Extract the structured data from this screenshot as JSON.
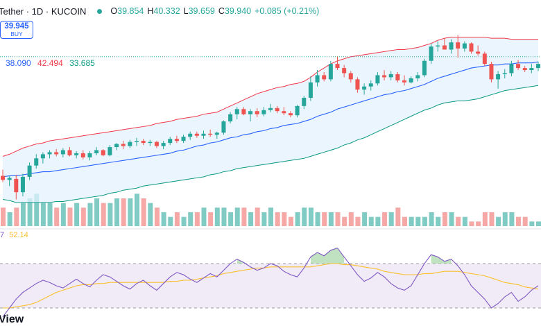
{
  "header": {
    "symbol": "Tether · 1D · KUCOIN",
    "ohlc": [
      {
        "k": "O",
        "v": "39.854"
      },
      {
        "k": "H",
        "v": "40.332"
      },
      {
        "k": "L",
        "v": "39.659"
      },
      {
        "k": "C",
        "v": "39.940"
      },
      {
        "k": "",
        "v": "+0.085 (+0.21%)"
      }
    ]
  },
  "buy_button": {
    "price": "39.945",
    "label": "BUY"
  },
  "bollinger_legend": {
    "basis": "38.090",
    "upper": "42.494",
    "lower": "33.685"
  },
  "rsi_legend": {
    "prefix": "7",
    "value": "52.14"
  },
  "watermark": "View",
  "colors": {
    "up": "#26a69a",
    "down": "#ef5350",
    "basis": "#2962ff",
    "upper": "#f23645",
    "lower": "#089981",
    "band_fill": "#e3f2fd",
    "rsi": "#7e57c2",
    "rsi_ma": "#fbc02d",
    "rsi_bg": "#ede7f6"
  },
  "chart_data": [
    {
      "type": "candlestick",
      "candles_ohlc": [
        [
          33.9,
          34.5,
          33.3,
          33.5
        ],
        [
          33.5,
          33.9,
          32.9,
          33.7
        ],
        [
          33.6,
          34.0,
          31.6,
          32.3
        ],
        [
          32.3,
          34.1,
          31.9,
          33.8
        ],
        [
          33.8,
          35.2,
          33.5,
          34.9
        ],
        [
          34.9,
          36.0,
          34.6,
          35.6
        ],
        [
          35.6,
          36.2,
          35.1,
          36.0
        ],
        [
          36.0,
          36.4,
          35.6,
          36.2
        ],
        [
          36.2,
          36.5,
          35.8,
          36.0
        ],
        [
          36.0,
          36.6,
          35.7,
          36.4
        ],
        [
          36.4,
          36.7,
          35.8,
          35.9
        ],
        [
          35.9,
          36.3,
          35.6,
          36.1
        ],
        [
          36.1,
          36.4,
          35.5,
          35.7
        ],
        [
          35.7,
          36.3,
          35.4,
          36.1
        ],
        [
          36.1,
          36.7,
          35.9,
          36.4
        ],
        [
          36.4,
          36.5,
          35.8,
          35.9
        ],
        [
          35.9,
          36.9,
          35.8,
          36.7
        ],
        [
          36.7,
          37.1,
          36.4,
          37.0
        ],
        [
          37.0,
          37.3,
          36.5,
          36.8
        ],
        [
          36.8,
          37.4,
          36.6,
          37.2
        ],
        [
          37.2,
          37.6,
          36.8,
          37.3
        ],
        [
          37.3,
          37.5,
          36.9,
          37.1
        ],
        [
          37.1,
          37.4,
          36.8,
          37.2
        ],
        [
          37.2,
          37.3,
          36.6,
          36.8
        ],
        [
          36.8,
          37.3,
          36.5,
          37.1
        ],
        [
          37.1,
          37.7,
          36.9,
          37.5
        ],
        [
          37.5,
          37.8,
          37.1,
          37.3
        ],
        [
          37.3,
          37.9,
          37.1,
          37.7
        ],
        [
          37.7,
          38.2,
          37.4,
          38.0
        ],
        [
          38.0,
          38.2,
          37.6,
          37.8
        ],
        [
          37.8,
          38.3,
          37.5,
          38.0
        ],
        [
          38.0,
          38.4,
          37.7,
          37.9
        ],
        [
          37.9,
          38.2,
          37.5,
          38.1
        ],
        [
          38.1,
          39.3,
          37.9,
          39.2
        ],
        [
          39.2,
          40.1,
          39.0,
          39.9
        ],
        [
          39.9,
          40.6,
          39.4,
          40.4
        ],
        [
          40.4,
          40.6,
          39.8,
          39.9
        ],
        [
          39.9,
          40.4,
          39.2,
          40.2
        ],
        [
          40.2,
          40.5,
          39.6,
          39.9
        ],
        [
          39.9,
          40.6,
          39.7,
          40.3
        ],
        [
          40.3,
          40.9,
          40.1,
          40.5
        ],
        [
          40.5,
          40.7,
          40.0,
          40.2
        ],
        [
          40.2,
          40.6,
          39.8,
          40.0
        ],
        [
          40.0,
          40.2,
          39.6,
          39.8
        ],
        [
          39.8,
          40.8,
          39.6,
          40.7
        ],
        [
          40.7,
          41.7,
          40.4,
          41.5
        ],
        [
          41.5,
          43.6,
          41.2,
          43.0
        ],
        [
          43.0,
          44.2,
          42.6,
          43.7
        ],
        [
          43.7,
          44.0,
          43.1,
          43.3
        ],
        [
          43.3,
          45.1,
          43.1,
          44.8
        ],
        [
          44.8,
          45.5,
          44.2,
          44.4
        ],
        [
          44.4,
          44.7,
          43.5,
          43.9
        ],
        [
          43.9,
          44.1,
          43.0,
          43.3
        ],
        [
          43.3,
          43.5,
          42.0,
          42.3
        ],
        [
          42.3,
          42.9,
          41.8,
          42.6
        ],
        [
          42.6,
          43.2,
          42.2,
          42.9
        ],
        [
          42.9,
          44.0,
          42.7,
          43.7
        ],
        [
          43.7,
          44.2,
          43.2,
          43.5
        ],
        [
          43.5,
          44.1,
          43.2,
          43.8
        ],
        [
          43.8,
          44.0,
          43.0,
          43.2
        ],
        [
          43.2,
          43.7,
          42.7,
          43.0
        ],
        [
          43.0,
          43.6,
          42.9,
          43.4
        ],
        [
          43.4,
          44.0,
          43.1,
          43.7
        ],
        [
          43.7,
          45.3,
          43.5,
          45.1
        ],
        [
          45.1,
          46.8,
          44.8,
          46.5
        ],
        [
          46.5,
          47.0,
          46.0,
          46.6
        ],
        [
          46.6,
          47.3,
          46.2,
          46.2
        ],
        [
          46.2,
          47.2,
          45.8,
          46.9
        ],
        [
          46.9,
          47.6,
          45.4,
          46.3
        ],
        [
          46.3,
          47.0,
          46.0,
          46.8
        ],
        [
          46.8,
          46.9,
          45.8,
          46.0
        ],
        [
          46.0,
          46.6,
          45.6,
          45.8
        ],
        [
          45.8,
          46.0,
          44.6,
          44.8
        ],
        [
          44.8,
          45.0,
          43.0,
          43.3
        ],
        [
          43.3,
          44.1,
          42.4,
          43.8
        ],
        [
          43.8,
          44.3,
          43.4,
          43.9
        ],
        [
          43.9,
          45.1,
          43.6,
          44.8
        ],
        [
          44.8,
          45.2,
          44.2,
          44.4
        ],
        [
          44.4,
          44.6,
          44.0,
          44.2
        ],
        [
          44.2,
          44.8,
          43.9,
          44.4
        ],
        [
          44.4,
          45.0,
          44.1,
          44.8
        ]
      ],
      "upper_band": [
        35.8,
        36.0,
        36.3,
        36.6,
        36.8,
        37.0,
        37.1,
        37.3,
        37.4,
        37.5,
        37.6,
        37.7,
        37.8,
        37.9,
        38.0,
        38.1,
        38.2,
        38.3,
        38.4,
        38.5,
        38.6,
        38.7,
        38.8,
        39.0,
        39.1,
        39.2,
        39.4,
        39.5,
        39.6,
        39.7,
        39.9,
        40.0,
        40.1,
        40.4,
        40.7,
        41.0,
        41.3,
        41.6,
        41.9,
        42.1,
        42.3,
        42.5,
        42.6,
        42.8,
        42.9,
        43.1,
        43.5,
        44.0,
        44.4,
        44.8,
        45.1,
        45.3,
        45.5,
        45.6,
        45.7,
        45.8,
        45.9,
        46.0,
        46.1,
        46.2,
        46.2,
        46.3,
        46.4,
        46.6,
        46.8,
        47.1,
        47.3,
        47.4,
        47.4,
        47.4,
        47.4,
        47.4,
        47.4,
        47.3,
        47.3,
        47.3,
        47.2,
        47.2,
        47.2,
        47.2,
        47.2
      ],
      "basis": [
        33.8,
        33.9,
        33.9,
        34.0,
        34.1,
        34.2,
        34.3,
        34.3,
        34.4,
        34.5,
        34.6,
        34.7,
        34.8,
        34.9,
        35.0,
        35.1,
        35.2,
        35.3,
        35.4,
        35.5,
        35.6,
        35.7,
        35.8,
        35.9,
        36.0,
        36.1,
        36.3,
        36.4,
        36.6,
        36.8,
        36.9,
        37.1,
        37.2,
        37.4,
        37.6,
        37.7,
        37.9,
        38.0,
        38.2,
        38.3,
        38.5,
        38.6,
        38.8,
        38.9,
        39.0,
        39.2,
        39.4,
        39.7,
        39.9,
        40.1,
        40.4,
        40.6,
        40.8,
        41.0,
        41.2,
        41.4,
        41.6,
        41.8,
        41.9,
        42.1,
        42.2,
        42.4,
        42.6,
        42.8,
        43.1,
        43.4,
        43.6,
        43.8,
        44.0,
        44.2,
        44.4,
        44.5,
        44.6,
        44.7,
        44.7,
        44.8,
        44.8,
        44.9,
        44.9,
        44.9,
        45.0
      ],
      "lower_band": [
        31.6,
        31.5,
        31.3,
        31.3,
        31.3,
        31.3,
        31.3,
        31.3,
        31.4,
        31.4,
        31.5,
        31.6,
        31.7,
        31.8,
        31.9,
        32.0,
        32.2,
        32.3,
        32.5,
        32.6,
        32.7,
        32.9,
        33.0,
        33.1,
        33.2,
        33.3,
        33.4,
        33.5,
        33.6,
        33.7,
        33.8,
        34.0,
        34.1,
        34.3,
        34.4,
        34.6,
        34.7,
        34.8,
        34.9,
        35.0,
        35.1,
        35.2,
        35.3,
        35.4,
        35.5,
        35.6,
        35.8,
        36.0,
        36.2,
        36.4,
        36.6,
        36.9,
        37.1,
        37.4,
        37.6,
        37.9,
        38.2,
        38.5,
        38.8,
        39.1,
        39.4,
        39.7,
        40.0,
        40.3,
        40.5,
        40.8,
        41.0,
        41.1,
        41.2,
        41.2,
        41.3,
        41.4,
        41.6,
        41.8,
        42.0,
        42.2,
        42.3,
        42.4,
        42.5,
        42.6,
        42.7
      ],
      "ylim": [
        29.0,
        49.0
      ],
      "reference_line": 45.5
    },
    {
      "type": "bar",
      "label": "volume",
      "values": [
        4,
        3,
        4,
        5,
        6,
        7,
        5,
        5,
        4,
        5,
        4,
        5,
        4,
        5,
        6,
        5,
        5,
        6,
        6,
        6,
        7,
        6,
        5,
        4,
        3,
        2,
        3,
        2,
        3,
        3,
        4,
        3,
        4,
        4,
        3,
        4,
        4,
        3,
        4,
        3,
        4,
        3,
        3,
        2,
        3,
        4,
        4,
        3,
        3,
        3,
        3,
        2,
        3,
        2,
        3,
        2,
        2,
        3,
        3,
        4,
        2,
        2,
        2,
        2,
        3,
        2,
        3,
        3,
        2,
        2,
        1,
        1,
        3,
        3,
        2,
        3,
        3,
        2,
        2,
        1,
        1
      ],
      "ylim": [
        0,
        12
      ]
    },
    {
      "type": "line",
      "label": "RSI",
      "rsi": [
        22,
        30,
        38,
        44,
        48,
        52,
        55,
        53,
        50,
        48,
        52,
        56,
        52,
        49,
        55,
        60,
        58,
        54,
        50,
        47,
        52,
        55,
        50,
        46,
        52,
        58,
        62,
        60,
        56,
        53,
        57,
        61,
        58,
        64,
        70,
        74,
        71,
        67,
        64,
        66,
        70,
        68,
        63,
        60,
        58,
        66,
        76,
        80,
        77,
        82,
        84,
        76,
        68,
        60,
        54,
        57,
        62,
        58,
        52,
        48,
        46,
        50,
        60,
        70,
        78,
        76,
        72,
        74,
        68,
        60,
        50,
        44,
        38,
        30,
        34,
        40,
        44,
        36,
        40,
        46,
        50
      ],
      "rsi_ma": [
        30,
        30,
        31,
        32,
        33,
        35,
        38,
        41,
        44,
        46,
        48,
        50,
        51,
        51,
        52,
        52,
        53,
        53,
        53,
        53,
        53,
        53,
        53,
        53,
        53,
        54,
        54,
        55,
        55,
        56,
        57,
        58,
        59,
        61,
        62,
        63,
        64,
        65,
        66,
        66,
        67,
        67,
        67,
        67,
        67,
        67,
        67,
        68,
        69,
        70,
        70,
        69,
        69,
        68,
        67,
        66,
        65,
        63,
        62,
        61,
        60,
        60,
        60,
        61,
        61,
        62,
        63,
        63,
        63,
        62,
        61,
        60,
        59,
        57,
        55,
        53,
        52,
        51,
        49,
        48,
        47
      ],
      "overbought": 70,
      "oversold": 30,
      "ylim": [
        15,
        95
      ]
    }
  ]
}
